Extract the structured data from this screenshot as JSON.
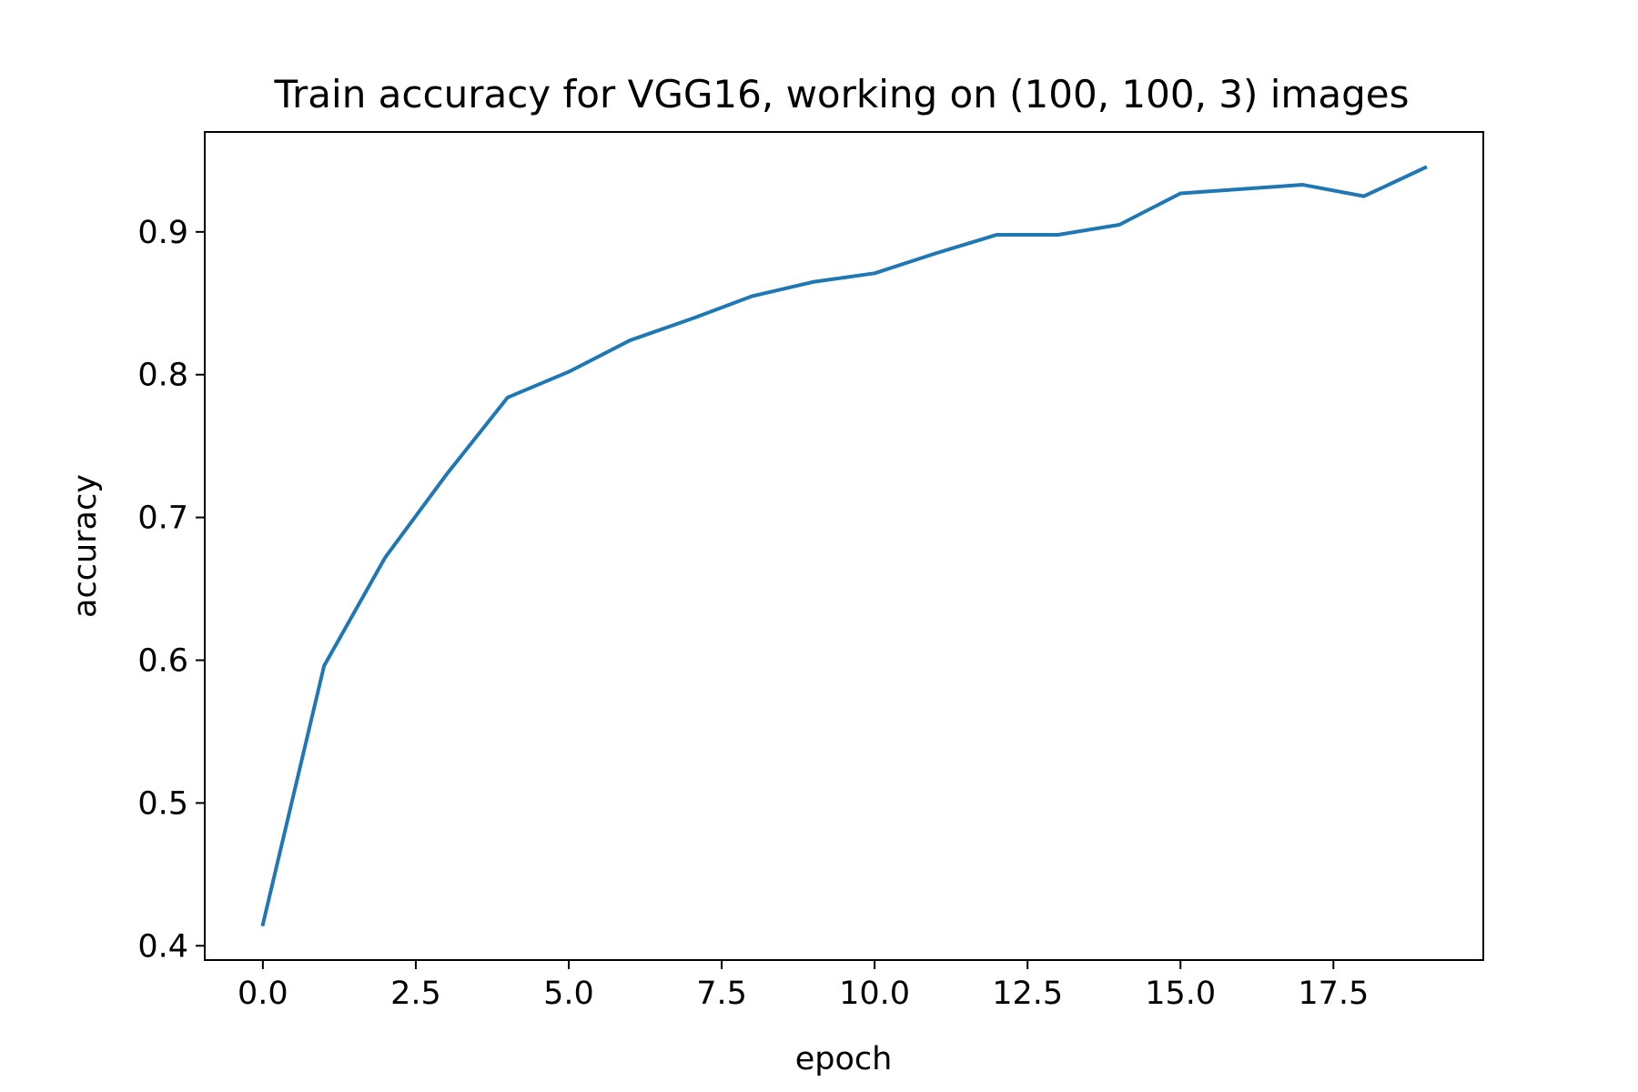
{
  "chart_data": {
    "type": "line",
    "title": "Train accuracy for VGG16, working on (100, 100, 3) images",
    "xlabel": "epoch",
    "ylabel": "accuracy",
    "xlim": [
      -0.95,
      19.95
    ],
    "ylim": [
      0.39,
      0.97
    ],
    "grid": false,
    "line_color": "#1f77b4",
    "xticks": [
      0.0,
      2.5,
      5.0,
      7.5,
      10.0,
      12.5,
      15.0,
      17.5
    ],
    "xtick_labels": [
      "0.0",
      "2.5",
      "5.0",
      "7.5",
      "10.0",
      "12.5",
      "15.0",
      "17.5"
    ],
    "yticks": [
      0.4,
      0.5,
      0.6,
      0.7,
      0.8,
      0.9
    ],
    "ytick_labels": [
      "0.4",
      "0.5",
      "0.6",
      "0.7",
      "0.8",
      "0.9"
    ],
    "series": [
      {
        "x": [
          0,
          1,
          2,
          3,
          4,
          5,
          6,
          7,
          8,
          9,
          10,
          11,
          12,
          13,
          14,
          15,
          16,
          17,
          18,
          19
        ],
        "values": [
          0.415,
          0.596,
          0.672,
          0.73,
          0.784,
          0.802,
          0.824,
          0.839,
          0.855,
          0.865,
          0.871,
          0.885,
          0.898,
          0.898,
          0.905,
          0.927,
          0.93,
          0.933,
          0.925,
          0.945
        ]
      }
    ]
  }
}
